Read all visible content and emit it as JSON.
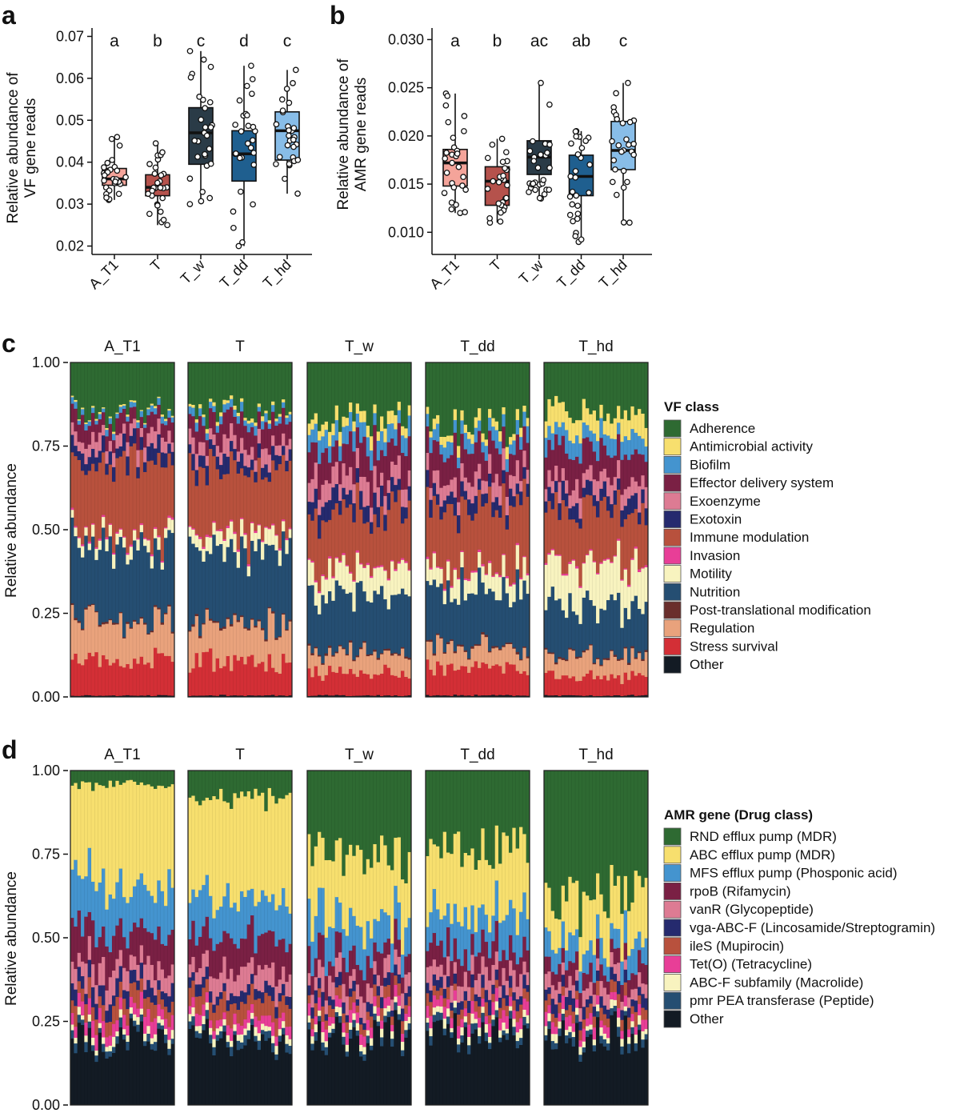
{
  "groups": [
    "A_T1",
    "T",
    "T_w",
    "T_dd",
    "T_hd"
  ],
  "panel_a": {
    "letter": "a",
    "ylabel_line1": "Relative abundance of",
    "ylabel_line2": "VF gene reads",
    "yticks": [
      "0.02",
      "0.03",
      "0.04",
      "0.05",
      "0.06",
      "0.07"
    ],
    "sig": [
      "a",
      "b",
      "c",
      "d",
      "c"
    ]
  },
  "panel_b": {
    "letter": "b",
    "ylabel_line1": "Relative abundance of",
    "ylabel_line2": "AMR gene reads",
    "yticks": [
      "0.010",
      "0.015",
      "0.020",
      "0.025",
      "0.030"
    ],
    "sig": [
      "a",
      "b",
      "ac",
      "ab",
      "c"
    ]
  },
  "panel_c": {
    "letter": "c",
    "ylabel": "Relative abundance",
    "yticks": [
      "0.00",
      "0.25",
      "0.50",
      "0.75",
      "1.00"
    ],
    "legend_title": "VF class",
    "legend": [
      "Adherence",
      "Antimicrobial activity",
      "Biofilm",
      "Effector delivery system",
      "Exoenzyme",
      "Exotoxin",
      "Immune modulation",
      "Invasion",
      "Motility",
      "Nutrition",
      "Post-translational modification",
      "Regulation",
      "Stress survival",
      "Other"
    ]
  },
  "panel_d": {
    "letter": "d",
    "ylabel": "Relative abundance",
    "yticks": [
      "0.00",
      "0.25",
      "0.50",
      "0.75",
      "1.00"
    ],
    "legend_title": "AMR gene (Drug class)",
    "legend": [
      "RND efflux pump (MDR)",
      "ABC efflux pump (MDR)",
      "MFS efflux pump (Phosponic acid)",
      "rpoB (Rifamycin)",
      "vanR (Glycopeptide)",
      "vga-ABC-F (Lincosamide/Streptogramin)",
      "ileS (Mupirocin)",
      "Tet(O) (Tetracycline)",
      "ABC-F subfamily (Macrolide)",
      "pmr PEA transferase (Peptide)",
      "Other"
    ]
  },
  "chart_data": [
    {
      "type": "box",
      "title": "a",
      "ylabel": "Relative abundance of VF gene reads",
      "categories": [
        "A_T1",
        "T",
        "T_w",
        "T_dd",
        "T_hd"
      ],
      "ylim": [
        0.018,
        0.072
      ],
      "colors": [
        "#f4a49a",
        "#b5524c",
        "#2a3b47",
        "#1f5f8f",
        "#88bde8"
      ],
      "boxes": [
        {
          "min": 0.031,
          "q1": 0.0345,
          "median": 0.036,
          "q3": 0.0385,
          "max": 0.046
        },
        {
          "min": 0.025,
          "q1": 0.032,
          "median": 0.034,
          "q3": 0.037,
          "max": 0.0445
        },
        {
          "min": 0.03,
          "q1": 0.0395,
          "median": 0.047,
          "q3": 0.053,
          "max": 0.0665
        },
        {
          "min": 0.02,
          "q1": 0.0355,
          "median": 0.042,
          "q3": 0.0475,
          "max": 0.063
        },
        {
          "min": 0.0325,
          "q1": 0.0405,
          "median": 0.0475,
          "q3": 0.052,
          "max": 0.062
        }
      ],
      "points_per_group": 28,
      "significance": [
        "a",
        "b",
        "c",
        "d",
        "c"
      ]
    },
    {
      "type": "box",
      "title": "b",
      "ylabel": "Relative abundance of AMR gene reads",
      "categories": [
        "A_T1",
        "T",
        "T_w",
        "T_dd",
        "T_hd"
      ],
      "ylim": [
        0.0077,
        0.0312
      ],
      "colors": [
        "#f4a49a",
        "#b5524c",
        "#2a3b47",
        "#1f5f8f",
        "#88bde8"
      ],
      "boxes": [
        {
          "min": 0.012,
          "q1": 0.0148,
          "median": 0.0172,
          "q3": 0.0186,
          "max": 0.0244
        },
        {
          "min": 0.011,
          "q1": 0.0128,
          "median": 0.0153,
          "q3": 0.0168,
          "max": 0.0197
        },
        {
          "min": 0.0135,
          "q1": 0.016,
          "median": 0.0178,
          "q3": 0.0195,
          "max": 0.0255
        },
        {
          "min": 0.009,
          "q1": 0.0138,
          "median": 0.0158,
          "q3": 0.018,
          "max": 0.0205
        },
        {
          "min": 0.011,
          "q1": 0.0165,
          "median": 0.0185,
          "q3": 0.0215,
          "max": 0.0255
        }
      ],
      "points_per_group": 28,
      "significance": [
        "a",
        "b",
        "ac",
        "ab",
        "c"
      ]
    },
    {
      "type": "stacked-bar",
      "title": "c",
      "ylabel": "Relative abundance",
      "ylim": [
        0,
        1
      ],
      "facets": [
        "A_T1",
        "T",
        "T_w",
        "T_dd",
        "T_hd"
      ],
      "samples_per_facet": 30,
      "legend_title": "VF class",
      "stack_order_bottom_to_top": [
        "Other",
        "Stress survival",
        "Regulation",
        "Post-translational modification",
        "Nutrition",
        "Motility",
        "Invasion",
        "Immune modulation",
        "Exotoxin",
        "Exoenzyme",
        "Effector delivery system",
        "Biofilm",
        "Antimicrobial activity",
        "Adherence"
      ],
      "colors": {
        "Adherence": "#2e6a32",
        "Antimicrobial activity": "#f7df6e",
        "Biofilm": "#4494cf",
        "Effector delivery system": "#7a2044",
        "Exoenzyme": "#dd7b93",
        "Exotoxin": "#252a6e",
        "Immune modulation": "#b8513d",
        "Invasion": "#e83e97",
        "Motility": "#f8f3bf",
        "Nutrition": "#254e72",
        "Post-translational modification": "#6a2e2c",
        "Regulation": "#e9a27c",
        "Stress survival": "#d32f36",
        "Other": "#131b24"
      },
      "mean_fractions": {
        "A_T1": {
          "Other": 0.005,
          "Stress survival": 0.11,
          "Regulation": 0.12,
          "Post-translational modification": 0.005,
          "Nutrition": 0.22,
          "Motility": 0.03,
          "Invasion": 0.005,
          "Immune modulation": 0.21,
          "Exotoxin": 0.04,
          "Exoenzyme": 0.04,
          "Effector delivery system": 0.05,
          "Biofilm": 0.015,
          "Antimicrobial activity": 0.005,
          "Adherence": 0.145
        },
        "T": {
          "Other": 0.005,
          "Stress survival": 0.1,
          "Regulation": 0.11,
          "Post-translational modification": 0.005,
          "Nutrition": 0.22,
          "Motility": 0.045,
          "Invasion": 0.005,
          "Immune modulation": 0.2,
          "Exotoxin": 0.04,
          "Exoenzyme": 0.04,
          "Effector delivery system": 0.06,
          "Biofilm": 0.02,
          "Antimicrobial activity": 0.01,
          "Adherence": 0.14
        },
        "T_w": {
          "Other": 0.005,
          "Stress survival": 0.07,
          "Regulation": 0.06,
          "Post-translational modification": 0.005,
          "Nutrition": 0.17,
          "Motility": 0.08,
          "Invasion": 0.005,
          "Immune modulation": 0.16,
          "Exotoxin": 0.05,
          "Exoenzyme": 0.06,
          "Effector delivery system": 0.09,
          "Biofilm": 0.05,
          "Antimicrobial activity": 0.035,
          "Adherence": 0.16
        },
        "T_dd": {
          "Other": 0.005,
          "Stress survival": 0.08,
          "Regulation": 0.06,
          "Post-translational modification": 0.005,
          "Nutrition": 0.17,
          "Motility": 0.06,
          "Invasion": 0.005,
          "Immune modulation": 0.19,
          "Exotoxin": 0.04,
          "Exoenzyme": 0.05,
          "Effector delivery system": 0.09,
          "Biofilm": 0.04,
          "Antimicrobial activity": 0.025,
          "Adherence": 0.18
        },
        "T_hd": {
          "Other": 0.005,
          "Stress survival": 0.06,
          "Regulation": 0.06,
          "Post-translational modification": 0.005,
          "Nutrition": 0.15,
          "Motility": 0.12,
          "Invasion": 0.005,
          "Immune modulation": 0.16,
          "Exotoxin": 0.04,
          "Exoenzyme": 0.05,
          "Effector delivery system": 0.09,
          "Biofilm": 0.05,
          "Antimicrobial activity": 0.06,
          "Adherence": 0.15
        }
      }
    },
    {
      "type": "stacked-bar",
      "title": "d",
      "ylabel": "Relative abundance",
      "ylim": [
        0,
        1
      ],
      "facets": [
        "A_T1",
        "T",
        "T_w",
        "T_dd",
        "T_hd"
      ],
      "samples_per_facet": 30,
      "legend_title": "AMR gene (Drug class)",
      "stack_order_bottom_to_top": [
        "Other",
        "pmr PEA transferase (Peptide)",
        "ABC-F subfamily (Macrolide)",
        "Tet(O) (Tetracycline)",
        "ileS (Mupirocin)",
        "vga-ABC-F (Lincosamide/Streptogramin)",
        "vanR (Glycopeptide)",
        "rpoB (Rifamycin)",
        "MFS efflux pump (Phosponic acid)",
        "ABC efflux pump (MDR)",
        "RND efflux pump (MDR)"
      ],
      "colors": {
        "RND efflux pump (MDR)": "#2e6a32",
        "ABC efflux pump (MDR)": "#f7df6e",
        "MFS efflux pump (Phosponic acid)": "#4494cf",
        "rpoB (Rifamycin)": "#7a2044",
        "vanR (Glycopeptide)": "#dd7b93",
        "vga-ABC-F (Lincosamide/Streptogramin)": "#252a6e",
        "ileS (Mupirocin)": "#b8513d",
        "Tet(O) (Tetracycline)": "#e83e97",
        "ABC-F subfamily (Macrolide)": "#f8f3bf",
        "pmr PEA transferase (Peptide)": "#254e72",
        "Other": "#131b24"
      },
      "mean_fractions": {
        "A_T1": {
          "Other": 0.2,
          "pmr PEA transferase (Peptide)": 0.02,
          "ABC-F subfamily (Macrolide)": 0.02,
          "Tet(O) (Tetracycline)": 0.04,
          "ileS (Mupirocin)": 0.05,
          "vga-ABC-F (Lincosamide/Streptogramin)": 0.04,
          "vanR (Glycopeptide)": 0.06,
          "rpoB (Rifamycin)": 0.1,
          "MFS efflux pump (Phosponic acid)": 0.15,
          "ABC efflux pump (MDR)": 0.28,
          "RND efflux pump (MDR)": 0.04
        },
        "T": {
          "Other": 0.19,
          "pmr PEA transferase (Peptide)": 0.02,
          "ABC-F subfamily (Macrolide)": 0.02,
          "Tet(O) (Tetracycline)": 0.03,
          "ileS (Mupirocin)": 0.05,
          "vga-ABC-F (Lincosamide/Streptogramin)": 0.03,
          "vanR (Glycopeptide)": 0.06,
          "rpoB (Rifamycin)": 0.1,
          "MFS efflux pump (Phosponic acid)": 0.12,
          "ABC efflux pump (MDR)": 0.3,
          "RND efflux pump (MDR)": 0.08
        },
        "T_w": {
          "Other": 0.21,
          "pmr PEA transferase (Peptide)": 0.02,
          "ABC-F subfamily (Macrolide)": 0.02,
          "Tet(O) (Tetracycline)": 0.03,
          "ileS (Mupirocin)": 0.03,
          "vga-ABC-F (Lincosamide/Streptogramin)": 0.03,
          "vanR (Glycopeptide)": 0.05,
          "rpoB (Rifamycin)": 0.07,
          "MFS efflux pump (Phosponic acid)": 0.1,
          "ABC efflux pump (MDR)": 0.19,
          "RND efflux pump (MDR)": 0.25
        },
        "T_dd": {
          "Other": 0.22,
          "pmr PEA transferase (Peptide)": 0.02,
          "ABC-F subfamily (Macrolide)": 0.02,
          "Tet(O) (Tetracycline)": 0.03,
          "ileS (Mupirocin)": 0.03,
          "vga-ABC-F (Lincosamide/Streptogramin)": 0.03,
          "vanR (Glycopeptide)": 0.05,
          "rpoB (Rifamycin)": 0.07,
          "MFS efflux pump (Phosponic acid)": 0.1,
          "ABC efflux pump (MDR)": 0.2,
          "RND efflux pump (MDR)": 0.23
        },
        "T_hd": {
          "Other": 0.2,
          "pmr PEA transferase (Peptide)": 0.02,
          "ABC-F subfamily (Macrolide)": 0.02,
          "Tet(O) (Tetracycline)": 0.03,
          "ileS (Mupirocin)": 0.03,
          "vga-ABC-F (Lincosamide/Streptogramin)": 0.03,
          "vanR (Glycopeptide)": 0.04,
          "rpoB (Rifamycin)": 0.05,
          "MFS efflux pump (Phosponic acid)": 0.07,
          "ABC efflux pump (MDR)": 0.13,
          "RND efflux pump (MDR)": 0.38
        }
      }
    }
  ]
}
